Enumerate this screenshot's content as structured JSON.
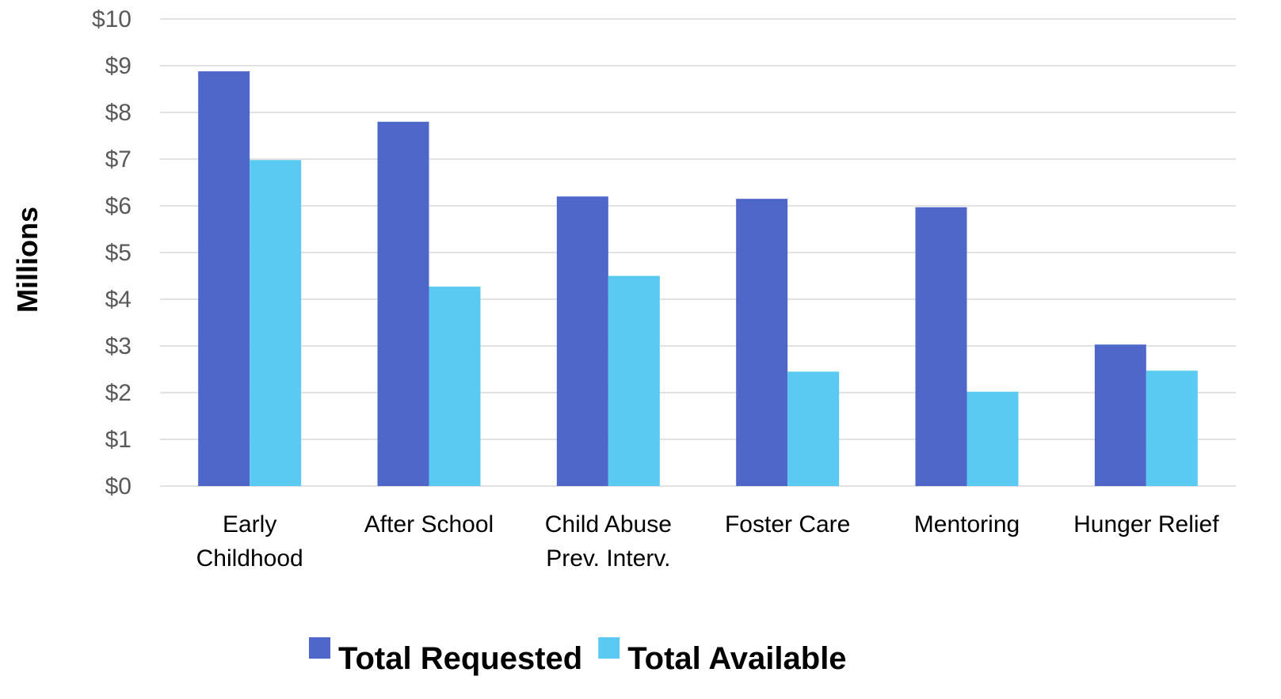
{
  "chart_data": {
    "type": "bar",
    "categories": [
      [
        "Early",
        "Childhood"
      ],
      [
        "After School"
      ],
      [
        "Child Abuse",
        "Prev. Interv."
      ],
      [
        "Foster Care"
      ],
      [
        "Mentoring"
      ],
      [
        "Hunger Relief"
      ]
    ],
    "series": [
      {
        "name": "Total Requested",
        "color": "#4f67c9",
        "values": [
          8.88,
          7.8,
          6.2,
          6.15,
          5.97,
          3.03
        ]
      },
      {
        "name": "Total Available",
        "color": "#5bcaf2",
        "values": [
          6.98,
          4.27,
          4.5,
          2.45,
          2.02,
          2.47
        ]
      }
    ],
    "ylabel": "Millions",
    "ylim": [
      0,
      10
    ],
    "yticks": [
      "$0",
      "$1",
      "$2",
      "$3",
      "$4",
      "$5",
      "$6",
      "$7",
      "$8",
      "$9",
      "$10"
    ],
    "grid": true,
    "legend_position": "bottom"
  }
}
